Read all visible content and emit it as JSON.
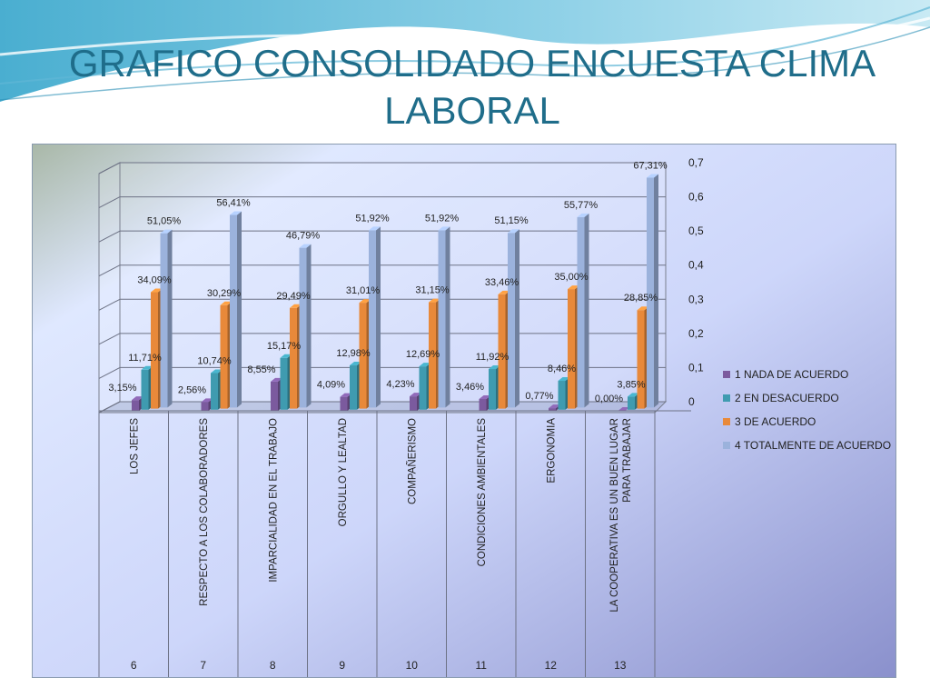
{
  "title": "GRAFICO CONSOLIDADO ENCUESTA CLIMA LABORAL",
  "chart_data": {
    "type": "bar",
    "title": "",
    "xlabel": "",
    "ylabel": "",
    "ylim": [
      0,
      0.7
    ],
    "yticks": [
      "0",
      "0,1",
      "0,2",
      "0,3",
      "0,4",
      "0,5",
      "0,6",
      "0,7"
    ],
    "legend_position": "right",
    "grid": true,
    "categories": [
      "LOS JEFES",
      "RESPECTO A LOS COLABORADORES",
      "IMPARCIALIDAD EN EL TRABAJO",
      "ORGULLO Y LEALTAD",
      "COMPAÑERISMO",
      "CONDICIONES AMBIENTALES",
      "ERGONOMIA",
      "LA COOPERATIVA ES UN BUEN LUGAR PARA TRABAJAR"
    ],
    "category_numbers": [
      "6",
      "7",
      "8",
      "9",
      "10",
      "11",
      "12",
      "13"
    ],
    "series": [
      {
        "name": "1 NADA DE ACUERDO",
        "color": "#7b5a9e",
        "values": [
          0.0315,
          0.0256,
          0.0855,
          0.0409,
          0.0423,
          0.0346,
          0.0077,
          0.0
        ],
        "labels": [
          "3,15%",
          "2,56%",
          "8,55%",
          "4,09%",
          "4,23%",
          "3,46%",
          "0,77%",
          "0,00%"
        ]
      },
      {
        "name": "2 EN DESACUERDO",
        "color": "#3f9bb0",
        "values": [
          0.1171,
          0.1074,
          0.1517,
          0.1298,
          0.1269,
          0.1192,
          0.0846,
          0.0385
        ],
        "labels": [
          "11,71%",
          "10,74%",
          "15,17%",
          "12,98%",
          "12,69%",
          "11,92%",
          "8,46%",
          "3,85%"
        ]
      },
      {
        "name": "3 DE ACUERDO",
        "color": "#e8893a",
        "values": [
          0.3409,
          0.3029,
          0.2949,
          0.3101,
          0.3115,
          0.3346,
          0.35,
          0.2885
        ],
        "labels": [
          "34,09%",
          "30,29%",
          "29,49%",
          "31,01%",
          "31,15%",
          "33,46%",
          "35,00%",
          "28,85%"
        ]
      },
      {
        "name": "4 TOTALMENTE DE ACUERDO",
        "color": "#9bb2dc",
        "values": [
          0.5105,
          0.5641,
          0.4679,
          0.5192,
          0.5192,
          0.5115,
          0.5577,
          0.6731
        ],
        "labels": [
          "51,05%",
          "56,41%",
          "46,79%",
          "51,92%",
          "51,92%",
          "51,15%",
          "55,77%",
          "67,31%"
        ]
      }
    ]
  }
}
